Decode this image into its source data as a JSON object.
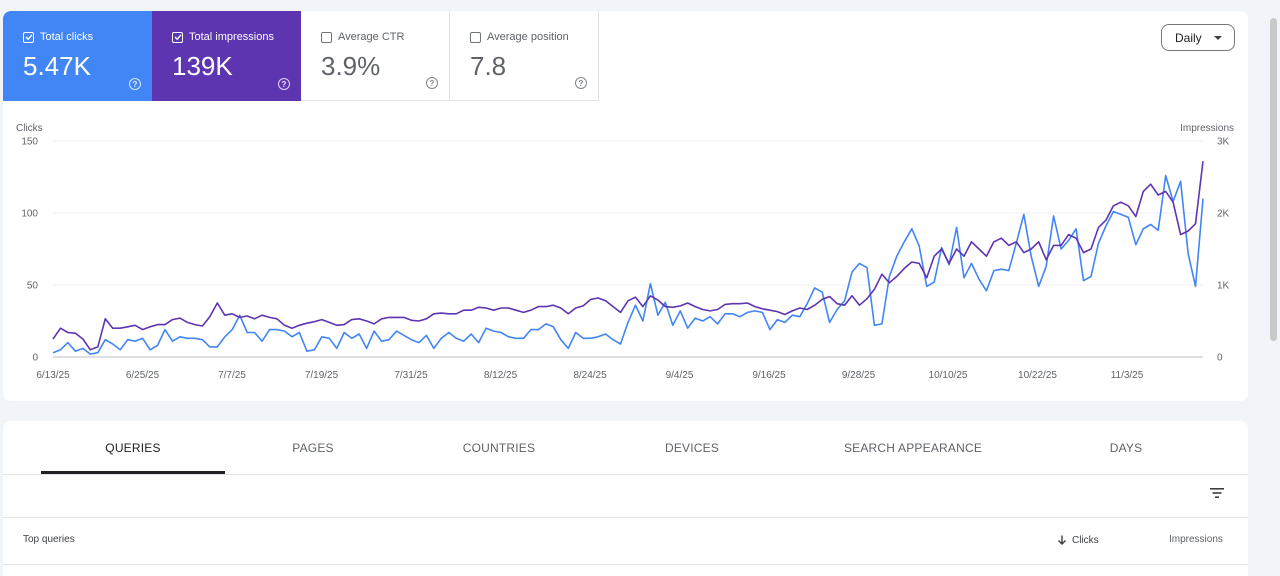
{
  "metrics": [
    {
      "id": "clicks",
      "label": "Total clicks",
      "value": "5.47K",
      "checked": true,
      "color": "#4285f4"
    },
    {
      "id": "impressions",
      "label": "Total impressions",
      "value": "139K",
      "checked": true,
      "color": "#5e35b1"
    },
    {
      "id": "ctr",
      "label": "Average CTR",
      "value": "3.9%",
      "checked": false
    },
    {
      "id": "position",
      "label": "Average position",
      "value": "7.8",
      "checked": false
    }
  ],
  "period_selector": {
    "label": "Daily"
  },
  "chart_data": {
    "type": "line",
    "left_axis_label": "Clicks",
    "right_axis_label": "Impressions",
    "left_ticks": [
      "0",
      "50",
      "100",
      "150"
    ],
    "right_ticks": [
      "0",
      "1K",
      "2K",
      "3K"
    ],
    "ylim_left": [
      0,
      150
    ],
    "ylim_right": [
      0,
      3000
    ],
    "x_tick_labels": [
      "6/13/25",
      "6/25/25",
      "7/7/25",
      "7/19/25",
      "7/31/25",
      "8/12/25",
      "8/24/25",
      "9/4/25",
      "9/16/25",
      "9/28/25",
      "10/10/25",
      "10/22/25",
      "11/3/25"
    ],
    "grid": true,
    "series": [
      {
        "name": "Total clicks",
        "axis": "left",
        "color": "#4285f4",
        "values": [
          3,
          5,
          10,
          4,
          6,
          2,
          3,
          12,
          9,
          5,
          12,
          11,
          13,
          5,
          8,
          19,
          11,
          14,
          13,
          13,
          12,
          7,
          7,
          14,
          19,
          29,
          17,
          17,
          11,
          19,
          19,
          18,
          14,
          17,
          4,
          5,
          14,
          13,
          6,
          17,
          13,
          16,
          6,
          18,
          11,
          12,
          18,
          15,
          12,
          10,
          15,
          6,
          13,
          17,
          13,
          11,
          16,
          10,
          20,
          18,
          17,
          14,
          13,
          13,
          19,
          19,
          23,
          21,
          12,
          6,
          17,
          13,
          13,
          14,
          16,
          12,
          9,
          24,
          36,
          25,
          51,
          29,
          38,
          22,
          32,
          20,
          27,
          25,
          28,
          23,
          30,
          30,
          28,
          31,
          32,
          31,
          19,
          26,
          24,
          29,
          28,
          37,
          48,
          45,
          24,
          33,
          39,
          59,
          65,
          62,
          22,
          23,
          56,
          70,
          80,
          89,
          77,
          49,
          52,
          76,
          64,
          90,
          55,
          65,
          54,
          46,
          60,
          61,
          60,
          79,
          99,
          70,
          49,
          63,
          98,
          75,
          81,
          89,
          53,
          56,
          79,
          91,
          101,
          99,
          97,
          78,
          89,
          92,
          88,
          126,
          108,
          122,
          72,
          49,
          110
        ]
      },
      {
        "name": "Total impressions",
        "axis": "right",
        "color": "#5e35b1",
        "values": [
          250,
          400,
          340,
          330,
          250,
          100,
          140,
          530,
          400,
          400,
          420,
          440,
          380,
          420,
          450,
          450,
          520,
          540,
          480,
          450,
          430,
          560,
          750,
          580,
          600,
          550,
          570,
          530,
          580,
          550,
          530,
          440,
          400,
          440,
          470,
          490,
          520,
          480,
          440,
          450,
          520,
          530,
          500,
          460,
          530,
          550,
          550,
          550,
          510,
          500,
          530,
          600,
          610,
          600,
          600,
          650,
          650,
          690,
          680,
          650,
          680,
          680,
          650,
          620,
          650,
          700,
          700,
          720,
          680,
          600,
          680,
          710,
          800,
          820,
          780,
          700,
          620,
          780,
          830,
          700,
          850,
          790,
          700,
          690,
          710,
          750,
          700,
          660,
          640,
          660,
          730,
          740,
          740,
          750,
          700,
          670,
          650,
          630,
          590,
          640,
          680,
          660,
          720,
          800,
          840,
          740,
          720,
          850,
          720,
          810,
          940,
          1150,
          1030,
          1120,
          1230,
          1320,
          1300,
          1100,
          1400,
          1500,
          1300,
          1500,
          1400,
          1600,
          1500,
          1400,
          1600,
          1650,
          1550,
          1600,
          1450,
          1500,
          1600,
          1350,
          1550,
          1550,
          1700,
          1650,
          1450,
          1500,
          1800,
          1900,
          2100,
          2150,
          2100,
          1950,
          2300,
          2400,
          2250,
          2300,
          2150,
          1700,
          1750,
          1850,
          2720
        ]
      }
    ]
  },
  "tabs": [
    {
      "id": "queries",
      "label": "QUERIES",
      "active": true
    },
    {
      "id": "pages",
      "label": "PAGES",
      "active": false
    },
    {
      "id": "countries",
      "label": "COUNTRIES",
      "active": false
    },
    {
      "id": "devices",
      "label": "DEVICES",
      "active": false
    },
    {
      "id": "search-appearance",
      "label": "SEARCH APPEARANCE",
      "active": false
    },
    {
      "id": "days",
      "label": "DAYS",
      "active": false
    }
  ],
  "table": {
    "title": "Top queries",
    "columns": [
      {
        "label": "Clicks",
        "sorted": true
      },
      {
        "label": "Impressions",
        "sorted": false
      }
    ]
  }
}
